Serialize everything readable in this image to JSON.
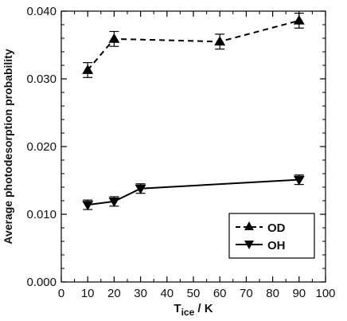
{
  "chart_data": {
    "type": "line",
    "title": "",
    "xlabel": {
      "main": "T",
      "sub": "ice",
      "rest": " / K"
    },
    "ylabel": "Average photodesorption probability",
    "xlim": [
      0,
      100
    ],
    "ylim": [
      0,
      0.04
    ],
    "x_ticks": [
      "0",
      "10",
      "20",
      "30",
      "40",
      "50",
      "60",
      "70",
      "80",
      "90",
      "100"
    ],
    "y_ticks": [
      "0.000",
      "0.010",
      "0.020",
      "0.030",
      "0.040"
    ],
    "grid": false,
    "legend_position": "bottom-right",
    "series": [
      {
        "name": "OD",
        "marker": "triangle-up",
        "line_style": "dashed",
        "x": [
          10,
          20,
          60,
          90
        ],
        "y": [
          0.0313,
          0.0359,
          0.0355,
          0.0386
        ],
        "error": [
          0.0011,
          0.0011,
          0.0011,
          0.0011
        ]
      },
      {
        "name": "OH",
        "marker": "triangle-down",
        "line_style": "solid",
        "x": [
          10,
          20,
          30,
          90
        ],
        "y": [
          0.0114,
          0.0119,
          0.0138,
          0.0151
        ],
        "error": [
          0.0007,
          0.0007,
          0.0007,
          0.0007
        ]
      }
    ],
    "colors": {
      "line": "#000000",
      "background": "#ffffff"
    }
  }
}
